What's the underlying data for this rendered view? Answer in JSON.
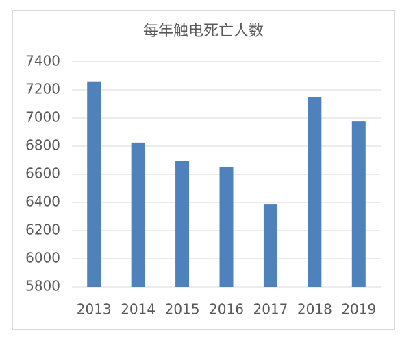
{
  "chart_data": {
    "type": "bar",
    "title": "每年触电死亡人数",
    "categories": [
      "2013",
      "2014",
      "2015",
      "2016",
      "2017",
      "2018",
      "2019"
    ],
    "values": [
      7260,
      6825,
      6695,
      6650,
      6385,
      7150,
      6975
    ],
    "color": "#4f81bd",
    "ylim": [
      5800,
      7400
    ],
    "yticks": [
      5800,
      6000,
      6200,
      6400,
      6600,
      6800,
      7000,
      7200,
      7400
    ],
    "grid": true
  }
}
